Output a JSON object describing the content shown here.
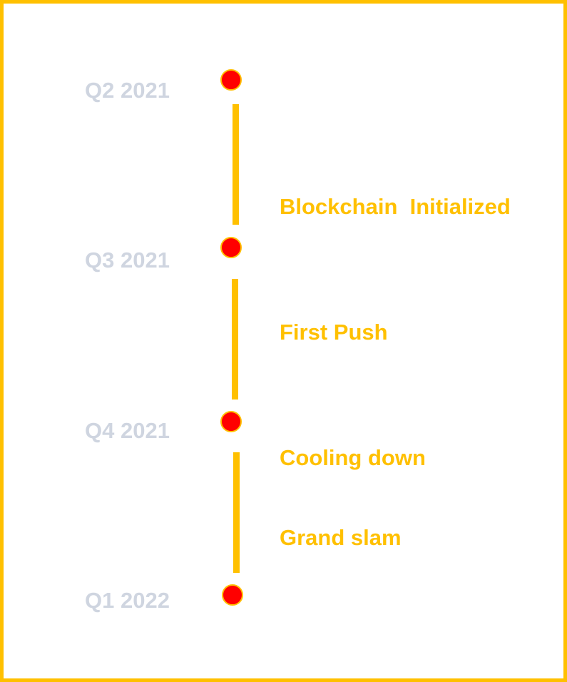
{
  "timeline": {
    "quarters": [
      "Q2 2021",
      "Q3 2021",
      "Q4 2021",
      "Q1 2022"
    ],
    "milestones": [
      "Blockchain  Initialized",
      "First Push",
      "Cooling down",
      "Grand slam"
    ]
  },
  "colors": {
    "frame": "#FFC000",
    "line": "#FFC000",
    "dot_fill": "#FF0000",
    "dot_outline": "#FFC000",
    "quarter_text": "#CFD5E0",
    "milestone_text": "#FFC000"
  }
}
